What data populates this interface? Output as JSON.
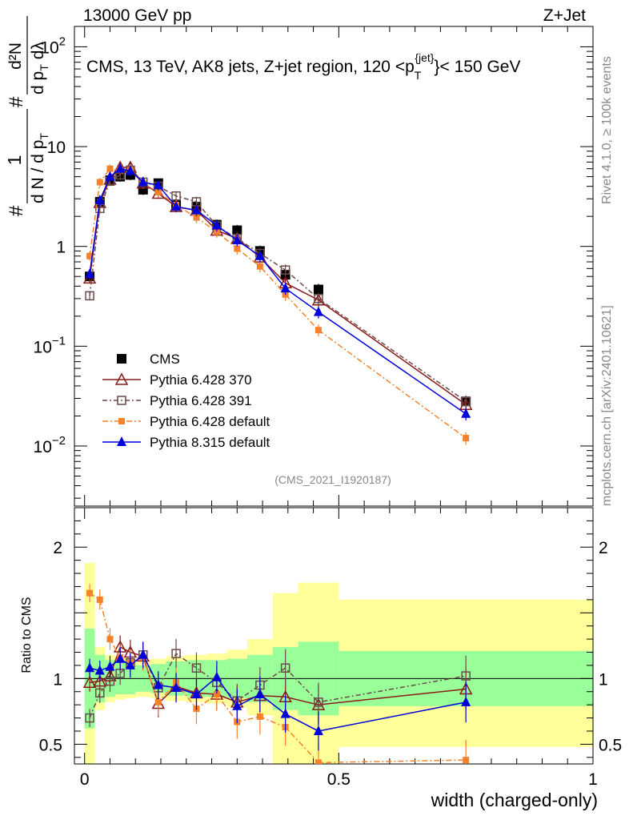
{
  "header": {
    "left": "13000 GeV pp",
    "right": "Z+Jet"
  },
  "side_labels": {
    "rivet": "Rivet 4.1.0, ≥ 100k events",
    "mcplots": "mcplots.cern.ch [arXiv:2401.10621]"
  },
  "analysis_tag": "(CMS_2021_I1920187)",
  "colors": {
    "cms": "#000000",
    "p370": "#8b1a1a",
    "p391": "#6b4a4a",
    "p6def": "#f5822a",
    "p8": "#0000dd",
    "band_inner": "#99ff99",
    "band_outer": "#ffff99"
  },
  "chart_data": {
    "type": "scatter",
    "title": "CMS, 13 TeV, AK8 jets, Z+jet region, 120 <pT{jet}< 150 GeV",
    "title_parts": {
      "prefix": "CMS, 13 TeV, AK8 jets, Z+jet region, 120 <p",
      "sub": "T",
      "sup": "{jet}",
      "suffix": "}< 150 GeV"
    },
    "xlabel": "width (charged-only)",
    "ylabel": "1/dN/dpT # d²N/dpT dλ",
    "ylabel_parts": {
      "left_hash": "#",
      "one": "1",
      "denom": "d N / d p",
      "denom_sub": "T",
      "right_hash": "#",
      "num": "d²N",
      "den2": "d p",
      "den2_sub": "T",
      "den2_tail": "dλ"
    },
    "ratio_ylabel": "Ratio to CMS",
    "xlim": [
      -0.02,
      1.0
    ],
    "ylim_log": [
      0.0025,
      160
    ],
    "ratio_ylim": [
      0.35,
      2.3
    ],
    "x_ticks": [
      0,
      0.5,
      1
    ],
    "x_tick_labels": [
      "0",
      "0.5",
      "1"
    ],
    "y_ticks": [
      {
        "v": 100,
        "base": "10",
        "exp": "2"
      },
      {
        "v": 10,
        "base": "10",
        "exp": ""
      },
      {
        "v": 1,
        "base": "1",
        "exp": ""
      },
      {
        "v": 0.1,
        "base": "10",
        "exp": "−1"
      },
      {
        "v": 0.01,
        "base": "10",
        "exp": "−2"
      }
    ],
    "ratio_ticks": [
      {
        "v": 2,
        "label": "2"
      },
      {
        "v": 1,
        "label": "1"
      },
      {
        "v": 0.5,
        "label": "0.5"
      }
    ],
    "bins": [
      [
        0.0,
        0.02
      ],
      [
        0.02,
        0.04
      ],
      [
        0.04,
        0.06
      ],
      [
        0.06,
        0.08
      ],
      [
        0.08,
        0.1
      ],
      [
        0.1,
        0.13
      ],
      [
        0.13,
        0.16
      ],
      [
        0.16,
        0.2
      ],
      [
        0.2,
        0.24
      ],
      [
        0.24,
        0.28
      ],
      [
        0.28,
        0.32
      ],
      [
        0.32,
        0.37
      ],
      [
        0.37,
        0.42
      ],
      [
        0.42,
        0.5
      ],
      [
        0.5,
        1.0
      ]
    ],
    "x": [
      0.01,
      0.03,
      0.05,
      0.07,
      0.09,
      0.115,
      0.145,
      0.18,
      0.22,
      0.26,
      0.3,
      0.345,
      0.395,
      0.46,
      0.75
    ],
    "band_inner": [
      [
        0.62,
        1.38
      ],
      [
        0.82,
        1.18
      ],
      [
        0.86,
        1.14
      ],
      [
        0.88,
        1.12
      ],
      [
        0.88,
        1.12
      ],
      [
        0.9,
        1.1
      ],
      [
        0.89,
        1.11
      ],
      [
        0.87,
        1.13
      ],
      [
        0.86,
        1.14
      ],
      [
        0.86,
        1.14
      ],
      [
        0.85,
        1.15
      ],
      [
        0.82,
        1.18
      ],
      [
        0.76,
        1.24
      ],
      [
        0.72,
        1.28
      ],
      [
        0.79,
        1.21
      ]
    ],
    "band_outer": [
      [
        0.35,
        1.88
      ],
      [
        0.76,
        1.24
      ],
      [
        0.82,
        1.18
      ],
      [
        0.84,
        1.16
      ],
      [
        0.85,
        1.15
      ],
      [
        0.86,
        1.14
      ],
      [
        0.85,
        1.15
      ],
      [
        0.83,
        1.17
      ],
      [
        0.82,
        1.18
      ],
      [
        0.81,
        1.19
      ],
      [
        0.78,
        1.22
      ],
      [
        0.72,
        1.3
      ],
      [
        0.35,
        1.65
      ],
      [
        0.35,
        1.73
      ],
      [
        0.48,
        1.6
      ]
    ],
    "legend": [
      "CMS",
      "Pythia 6.428 370",
      "Pythia 6.428 391",
      "Pythia 6.428 default",
      "Pythia 8.315 default"
    ],
    "series": [
      {
        "name": "CMS",
        "key": "cms",
        "marker": "square",
        "dash": "",
        "values": [
          0.5,
          2.8,
          4.6,
          5.0,
          5.2,
          3.7,
          4.3,
          2.6,
          2.5,
          1.65,
          1.45,
          0.9,
          0.52,
          0.37,
          0.028
        ]
      },
      {
        "name": "Pythia 6.428 370",
        "key": "p370",
        "marker": "triangle-open",
        "dash": "",
        "values": [
          0.48,
          2.75,
          4.7,
          6.2,
          6.2,
          4.3,
          3.4,
          2.5,
          2.3,
          1.45,
          1.2,
          0.78,
          0.43,
          0.29,
          0.026
        ],
        "ratio": [
          0.97,
          0.98,
          1.02,
          1.24,
          1.2,
          1.17,
          0.81,
          0.94,
          0.89,
          0.88,
          0.82,
          0.87,
          0.86,
          0.8,
          0.92
        ]
      },
      {
        "name": "Pythia 6.428 391",
        "key": "p391",
        "marker": "square-open",
        "dash": "6,3,2,3",
        "values": [
          0.32,
          2.4,
          4.5,
          5.2,
          5.8,
          4.4,
          4.0,
          3.2,
          2.8,
          1.6,
          1.2,
          0.85,
          0.58,
          0.3,
          0.028
        ],
        "ratio": [
          0.7,
          0.89,
          0.98,
          1.04,
          1.12,
          1.18,
          0.93,
          1.19,
          1.08,
          0.97,
          0.83,
          0.95,
          1.08,
          0.82,
          1.02
        ]
      },
      {
        "name": "Pythia 6.428 default",
        "key": "p6def",
        "marker": "square-small",
        "dash": "7,3,2,3",
        "values": [
          0.8,
          4.4,
          6.0,
          5.8,
          5.8,
          4.3,
          3.5,
          2.6,
          1.95,
          1.4,
          0.95,
          0.63,
          0.33,
          0.145,
          0.012
        ],
        "ratio": [
          1.65,
          1.6,
          1.3,
          1.16,
          1.12,
          1.16,
          0.82,
          0.97,
          0.77,
          0.88,
          0.67,
          0.71,
          0.63,
          0.36,
          0.38
        ]
      },
      {
        "name": "Pythia 8.315 default",
        "key": "p8",
        "marker": "triangle",
        "dash": "",
        "values": [
          0.53,
          2.9,
          5.0,
          6.0,
          5.7,
          4.4,
          4.1,
          2.5,
          2.3,
          1.62,
          1.15,
          0.8,
          0.38,
          0.22,
          0.021
        ],
        "ratio": [
          1.08,
          1.06,
          1.09,
          1.15,
          1.1,
          1.18,
          0.95,
          0.93,
          0.88,
          1.01,
          0.79,
          0.88,
          0.73,
          0.6,
          0.82
        ]
      }
    ]
  }
}
